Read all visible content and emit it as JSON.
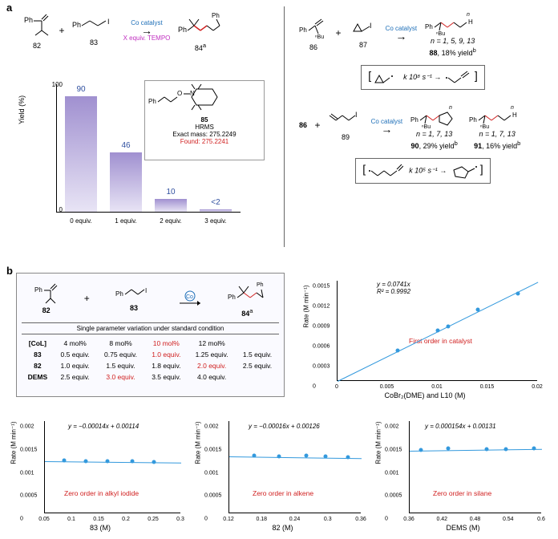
{
  "panel_a": {
    "label": "a",
    "left_scheme": {
      "reagents": [
        {
          "id": "82",
          "name": "Ph-isopropenyl"
        },
        {
          "id": "83",
          "name": "Ph-propyl-I"
        }
      ],
      "arrow_top": "Co catalyst",
      "arrow_bottom": "X equiv. TEMPO",
      "product": {
        "id": "84",
        "super": "a"
      }
    },
    "bar_chart": {
      "type": "bar",
      "y_label": "Yield (%)",
      "ylim": [
        0,
        100
      ],
      "ytick_step": 50,
      "categories": [
        "0 equiv.",
        "1 equiv.",
        "2 equiv.",
        "3 equiv."
      ],
      "values": [
        90,
        46,
        10,
        2
      ],
      "value_labels": [
        "90",
        "46",
        "10",
        "<2"
      ],
      "label_color": "#3050a0",
      "bar_gradient_top": "#a090d0",
      "bar_gradient_bottom": "#e8e4f5",
      "background_color": "#ffffff"
    },
    "hrms": {
      "compound_id": "85",
      "method": "HRMS",
      "exact_label": "Exact mass: 275.2249",
      "found_label": "Found: 275.2241"
    },
    "right_schemes": {
      "rxn1": {
        "reagents": [
          {
            "id": "86",
            "name": "Ph-nBu-vinyl"
          },
          {
            "id": "87",
            "name": "cyclopropyl-CH2I"
          }
        ],
        "arrow_top": "Co catalyst",
        "product": {
          "id": "88",
          "yield": "18% yield",
          "note": "n = 1, 5, 9, 13",
          "super": "b"
        }
      },
      "mech1": {
        "left": "cyclopropyl-radical",
        "rate": "k   10⁸ s⁻¹",
        "right": "allyl-radical"
      },
      "rxn2": {
        "reagent_left_id": "86",
        "reagent_right_id": "89",
        "arrow_top": "Co catalyst",
        "products": [
          {
            "id": "90",
            "yield": "29% yield",
            "note": "n = 1, 7, 13",
            "super": "b"
          },
          {
            "id": "91",
            "yield": "16% yield",
            "note": "n = 1, 7, 13",
            "super": "b"
          }
        ]
      },
      "mech2": {
        "left": "hexenyl-radical",
        "rate": "k   10⁵ s⁻¹",
        "right": "cyclopentylmethyl-radical"
      }
    }
  },
  "panel_b": {
    "label": "b",
    "table": {
      "scheme": {
        "reagents": [
          "82",
          "83"
        ],
        "catalyst_label": "Co",
        "product": "84",
        "product_super": "a"
      },
      "header": "Single parameter variation under standard condition",
      "rows": [
        {
          "param": "[CoL]",
          "v1": "4 mol%",
          "v2": "8 mol%",
          "v3": "10 mol%",
          "v4": "12 mol%",
          "v5": "",
          "hl": 3
        },
        {
          "param": "83",
          "v1": "0.5 equiv.",
          "v2": "0.75 equiv.",
          "v3": "1.0 equiv.",
          "v4": "1.25 equiv.",
          "v5": "1.5 equiv.",
          "hl": 3
        },
        {
          "param": "82",
          "v1": "1.0 equiv.",
          "v2": "1.5 equiv.",
          "v3": "1.8 equiv.",
          "v4": "2.0 equiv.",
          "v5": "2.5 equiv.",
          "hl": 4
        },
        {
          "param": "DEMS",
          "v1": "2.5 equiv.",
          "v2": "3.0 equiv.",
          "v3": "3.5 equiv.",
          "v4": "4.0 equiv.",
          "v5": "",
          "hl": 2
        }
      ]
    },
    "charts": {
      "catalyst": {
        "type": "scatter",
        "equation": "y = 0.0741x",
        "r2": "R² = 0.9992",
        "order_text": "First order in catalyst",
        "order_color": "#d02020",
        "x_label": "CoBr₂(DME) and L10 (M)",
        "y_label": "Rate (M min⁻¹)",
        "xlim": [
          0,
          0.02
        ],
        "xtick_step": 0.005,
        "ylim": [
          0,
          0.0015
        ],
        "ytick_step": 0.0003,
        "points": [
          [
            0.006,
            0.00045
          ],
          [
            0.01,
            0.00075
          ],
          [
            0.011,
            0.0008
          ],
          [
            0.014,
            0.00106
          ],
          [
            0.018,
            0.0013
          ]
        ],
        "line_color": "#3399dd",
        "point_color": "#3399dd"
      },
      "iodide": {
        "type": "scatter",
        "equation": "y = −0.00014x + 0.00114",
        "order_text": "Zero order in alkyl iodide",
        "order_color": "#d02020",
        "x_label": "83 (M)",
        "y_label": "Rate (M min⁻¹)",
        "xlim": [
          0.05,
          0.3
        ],
        "xtick_step": 0.05,
        "ylim": [
          0,
          0.002
        ],
        "ytick_step": 0.0005,
        "points": [
          [
            0.085,
            0.00113
          ],
          [
            0.125,
            0.00111
          ],
          [
            0.165,
            0.00111
          ],
          [
            0.21,
            0.00112
          ],
          [
            0.25,
            0.0011
          ]
        ],
        "line_color": "#3399dd",
        "point_color": "#3399dd"
      },
      "alkene": {
        "type": "scatter",
        "equation": "y = −0.00016x + 0.00126",
        "order_text": "Zero order in alkene",
        "order_color": "#d02020",
        "x_label": "82 (M)",
        "y_label": "Rate (M min⁻¹)",
        "xlim": [
          0.12,
          0.36
        ],
        "xtick_step": 0.06,
        "ylim": [
          0,
          0.002
        ],
        "ytick_step": 0.0005,
        "points": [
          [
            0.165,
            0.00124
          ],
          [
            0.21,
            0.00122
          ],
          [
            0.26,
            0.00123
          ],
          [
            0.295,
            0.00121
          ],
          [
            0.335,
            0.0012
          ]
        ],
        "line_color": "#3399dd",
        "point_color": "#3399dd"
      },
      "silane": {
        "type": "scatter",
        "equation": "y = 0.000154x + 0.00131",
        "order_text": "Zero order in silane",
        "order_color": "#d02020",
        "x_label": "DEMS (M)",
        "y_label": "Rate (M min⁻¹)",
        "xlim": [
          0.36,
          0.6
        ],
        "xtick_step": 0.06,
        "ylim": [
          0,
          0.002
        ],
        "ytick_step": 0.0005,
        "points": [
          [
            0.38,
            0.00136
          ],
          [
            0.43,
            0.00139
          ],
          [
            0.5,
            0.00137
          ],
          [
            0.535,
            0.00137
          ],
          [
            0.585,
            0.0014
          ]
        ],
        "line_color": "#3399dd",
        "point_color": "#3399dd"
      }
    }
  }
}
